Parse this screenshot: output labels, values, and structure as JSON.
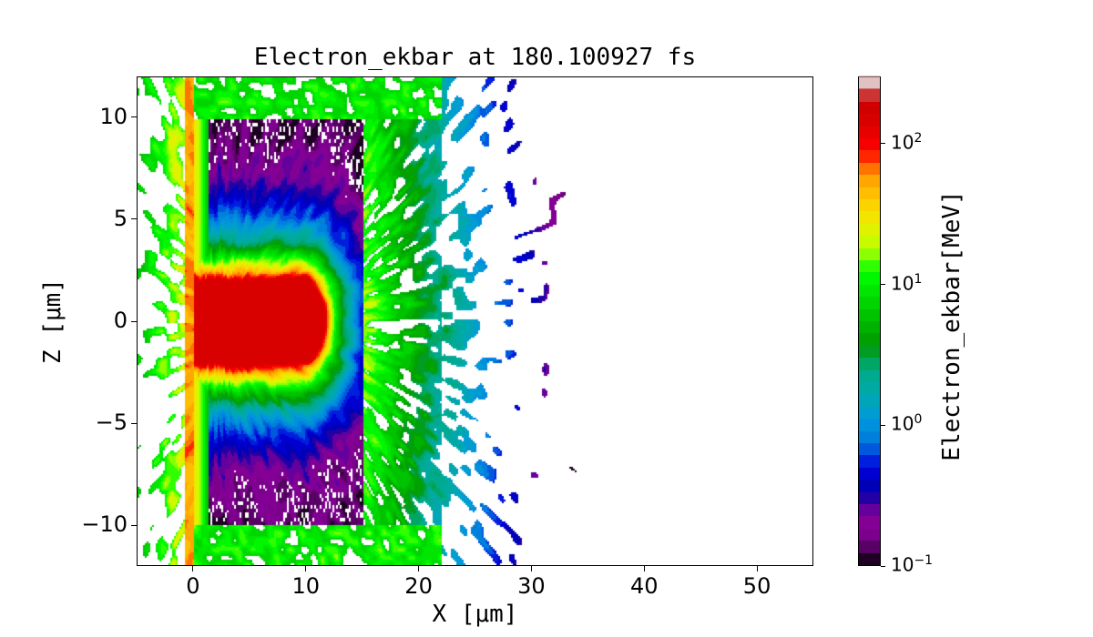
{
  "chart_data": {
    "type": "heatmap",
    "title": "Electron_ekbar at 180.100927 fs",
    "xlabel": "X  [μm]",
    "ylabel": "Z  [μm]",
    "xlim": [
      -5,
      55
    ],
    "ylim": [
      -12,
      12
    ],
    "xticks": [
      "0",
      "10",
      "20",
      "30",
      "40",
      "50"
    ],
    "xtick_values": [
      0,
      10,
      20,
      30,
      40,
      50
    ],
    "yticks": [
      "−10",
      "−5",
      "0",
      "5",
      "10"
    ],
    "ytick_values": [
      -10,
      -5,
      0,
      5,
      10
    ],
    "colormap": "nipy_spectral",
    "colorbar": {
      "label": "Electron_ekbar[MeV]",
      "scale": "log",
      "range": [
        0.1,
        300
      ],
      "ticks": [
        {
          "value": 100,
          "base": "10",
          "exp": "2"
        },
        {
          "value": 10,
          "base": "10",
          "exp": "1"
        },
        {
          "value": 1,
          "base": "10",
          "exp": "0"
        },
        {
          "value": 0.1,
          "base": "10",
          "exp": "−1"
        }
      ]
    },
    "grid": false
  }
}
